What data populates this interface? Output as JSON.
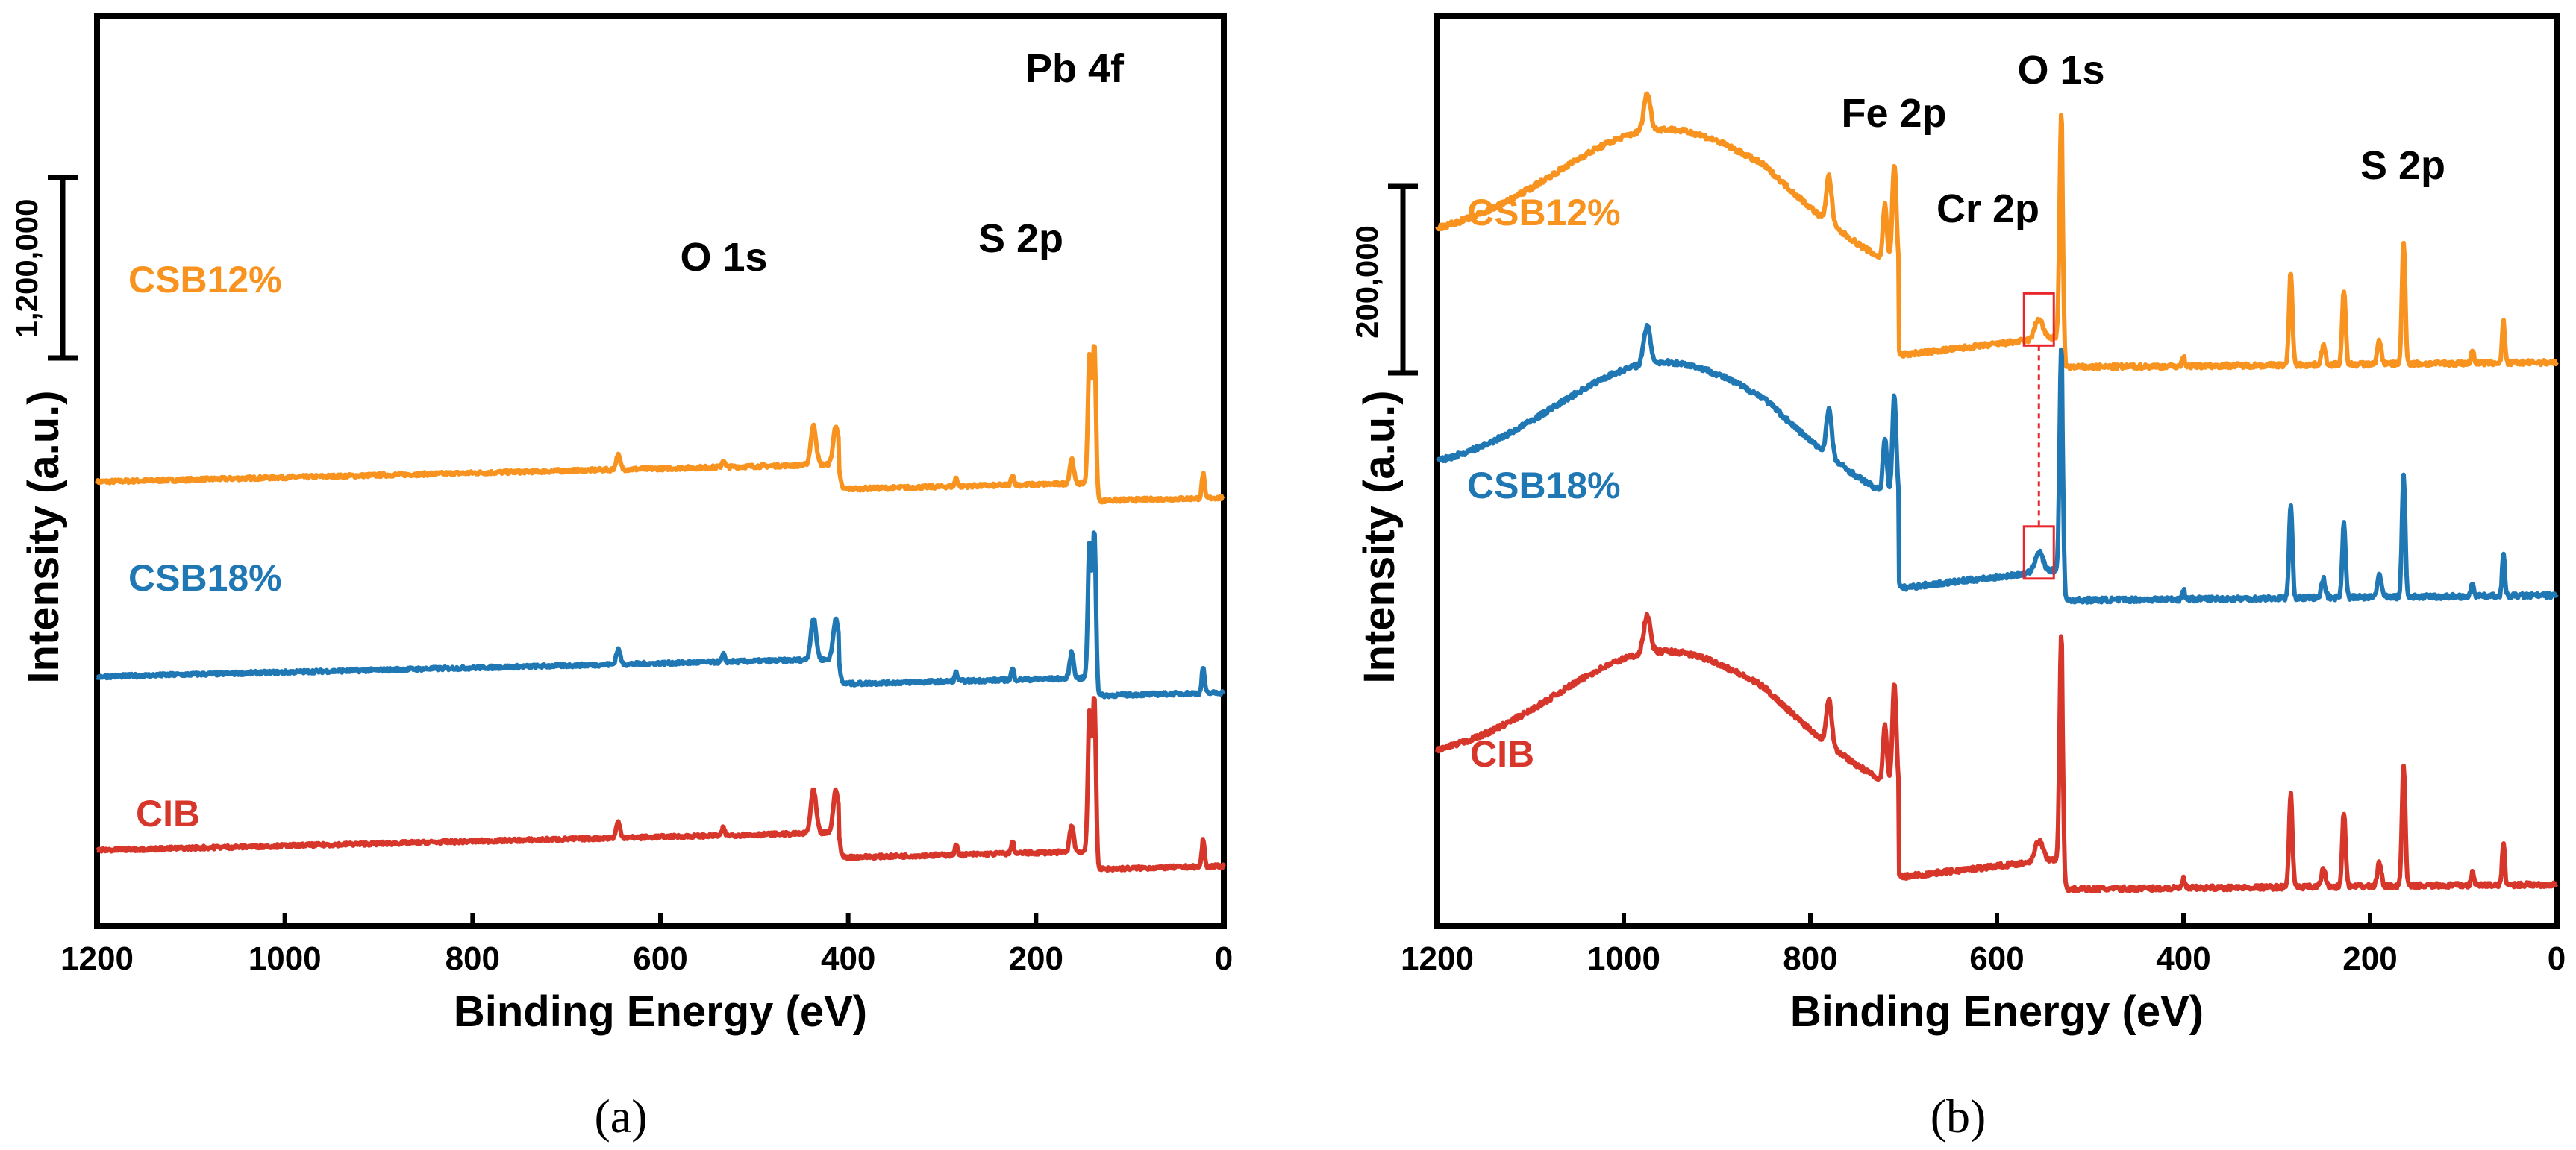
{
  "colors": {
    "CSB12%": "#F7931E",
    "CSB18%": "#1F77B4",
    "CIB": "#D7362B",
    "frame": "#000000",
    "highlight": "#E8262B"
  },
  "chart_data": [
    {
      "type": "line",
      "panel": "(a)",
      "xlabel": "Binding Energy (eV)",
      "ylabel": "Intensity (a.u.)",
      "xlim": [
        1200,
        0
      ],
      "x_ticks": [
        "1200",
        "1000",
        "800",
        "600",
        "400",
        "200",
        "0"
      ],
      "scale_bar": "1,200,000",
      "series": [
        {
          "name": "CSB12%",
          "offset": 5.2
        },
        {
          "name": "CSB18%",
          "offset": 2.45
        },
        {
          "name": "CIB",
          "offset": 0.0
        }
      ],
      "peak_labels": [
        {
          "text": "O 1s",
          "x": 530
        },
        {
          "text": "S 2p",
          "x": 225
        },
        {
          "text": "Pb 4f",
          "x": 138
        }
      ],
      "peaks": [
        {
          "x": 645,
          "h": 0.2,
          "w": 3
        },
        {
          "x": 533,
          "h": 0.1,
          "w": 2
        },
        {
          "x": 437,
          "h": 0.55,
          "w": 4
        },
        {
          "x": 413,
          "h": 0.55,
          "w": 4
        },
        {
          "x": 285,
          "h": 0.12,
          "w": 2
        },
        {
          "x": 225,
          "h": 0.15,
          "w": 2
        },
        {
          "x": 162,
          "h": 0.35,
          "w": 3
        },
        {
          "x": 143,
          "h": 1.8,
          "w": 2.5
        },
        {
          "x": 138,
          "h": 2.2,
          "w": 2.5
        },
        {
          "x": 22,
          "h": 0.35,
          "w": 2
        }
      ],
      "series_peak_scale": {
        "CSB12%": 1.0,
        "CSB18%": 1.05,
        "CIB": 1.1
      }
    },
    {
      "type": "line",
      "panel": "(b)",
      "xlabel": "Binding Energy (eV)",
      "ylabel": "Intensity (a.u.)",
      "xlim": [
        1200,
        0
      ],
      "x_ticks": [
        "1200",
        "1000",
        "800",
        "600",
        "400",
        "200",
        "0"
      ],
      "scale_bar": "200,000",
      "series": [
        {
          "name": "CSB12%",
          "offset": 5.6
        },
        {
          "name": "CSB18%",
          "offset": 3.1
        },
        {
          "name": "CIB",
          "offset": 0.0
        }
      ],
      "peak_labels": [
        {
          "text": "Fe 2p",
          "x": 710
        },
        {
          "text": "O 1s",
          "x": 531
        },
        {
          "text": "Cr 2p",
          "x": 576
        },
        {
          "text": "S 2p",
          "x": 165
        }
      ],
      "cr_highlight_x": 555,
      "peaks": [
        {
          "x": 975,
          "h": 0.4,
          "w": 5
        },
        {
          "x": 780,
          "h": 0.5,
          "w": 4
        },
        {
          "x": 720,
          "h": 0.6,
          "w": 3
        },
        {
          "x": 710,
          "h": 1.1,
          "w": 3
        },
        {
          "x": 555,
          "h": 0.22,
          "w": 6
        },
        {
          "x": 531,
          "h": 2.4,
          "w": 2.5
        },
        {
          "x": 400,
          "h": 0.1,
          "w": 2
        },
        {
          "x": 285,
          "h": 1.0,
          "w": 2.5
        },
        {
          "x": 250,
          "h": 0.2,
          "w": 3
        },
        {
          "x": 228,
          "h": 0.8,
          "w": 2.5
        },
        {
          "x": 190,
          "h": 0.25,
          "w": 3
        },
        {
          "x": 164,
          "h": 1.3,
          "w": 2.5
        },
        {
          "x": 90,
          "h": 0.15,
          "w": 2
        },
        {
          "x": 57,
          "h": 0.45,
          "w": 2
        }
      ]
    }
  ]
}
